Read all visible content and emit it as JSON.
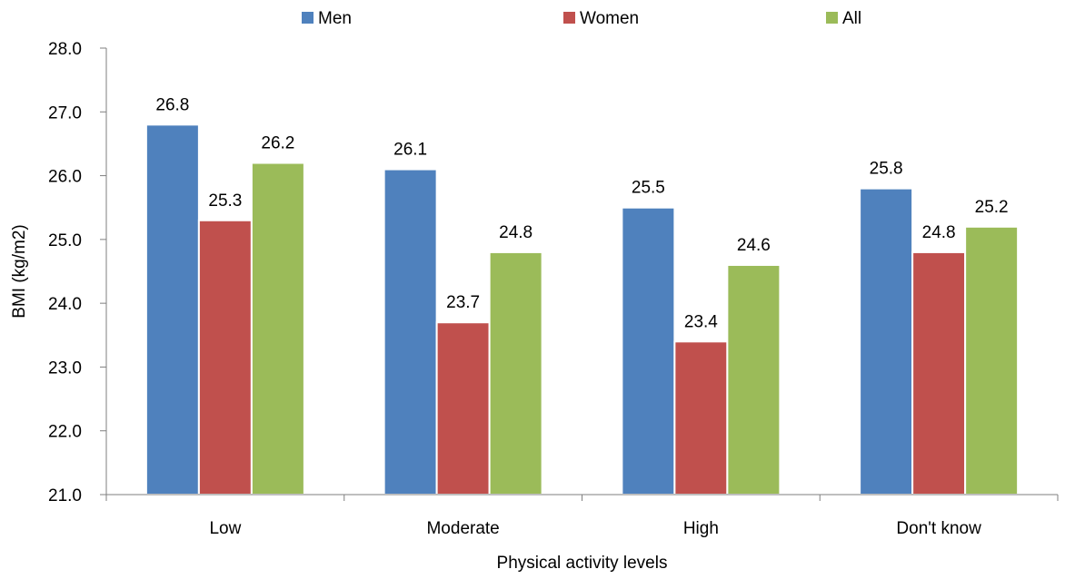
{
  "chart_data": {
    "type": "bar",
    "title": "",
    "xlabel": "Physical activity levels",
    "ylabel": "BMI (kg/m2)",
    "ylim": [
      21.0,
      28.0
    ],
    "yticks": [
      "21.0",
      "22.0",
      "23.0",
      "24.0",
      "25.0",
      "26.0",
      "27.0",
      "28.0"
    ],
    "categories": [
      "Low",
      "Moderate",
      "High",
      "Don't know"
    ],
    "series": [
      {
        "name": "Men",
        "color": "#4f81bd",
        "values": [
          26.8,
          26.1,
          25.5,
          25.8
        ],
        "labels": [
          "26.8",
          "26.1",
          "25.5",
          "25.8"
        ]
      },
      {
        "name": "Women",
        "color": "#c0504d",
        "values": [
          25.3,
          23.7,
          23.4,
          24.8
        ],
        "labels": [
          "25.3",
          "23.7",
          "23.4",
          "24.8"
        ]
      },
      {
        "name": "All",
        "color": "#9bbb59",
        "values": [
          26.2,
          24.8,
          24.6,
          25.2
        ],
        "labels": [
          "26.2",
          "24.8",
          "24.6",
          "25.2"
        ]
      }
    ],
    "legend": "top",
    "grid": false
  }
}
